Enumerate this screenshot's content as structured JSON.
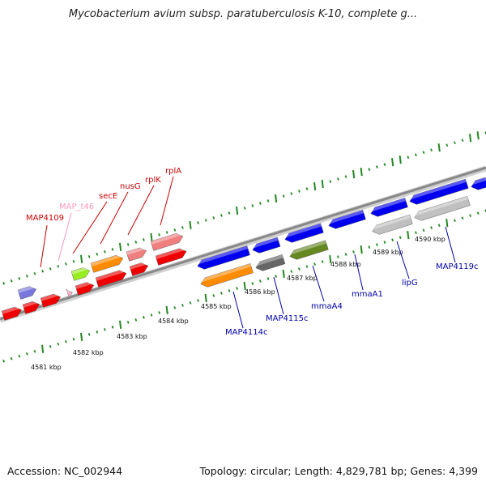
{
  "title": "Mycobacterium avium subsp. paratuberculosis K-10, complete g...",
  "footer": {
    "accession": "Accession: NC_002944",
    "summary": "Topology: circular; Length: 4,829,781 bp; Genes: 4,399"
  },
  "colors": {
    "red": "#ee0000",
    "orange": "#ff8c00",
    "salmon": "#f08080",
    "lime": "#99ee22",
    "pink": "#ffb0c8",
    "purple": "#7777dd",
    "blue": "#0000ee",
    "darkgray": "#666666",
    "olive": "#668822",
    "lightgray": "#c0c0c0",
    "tick": "#228822",
    "backbone": "#888888"
  },
  "kbp_labels": [
    {
      "text": "4581 kbp"
    },
    {
      "text": "4582 kbp"
    },
    {
      "text": "4583 kbp"
    },
    {
      "text": "4584 kbp"
    },
    {
      "text": "4585 kbp"
    },
    {
      "text": "4586 kbp"
    },
    {
      "text": "4587 kbp"
    },
    {
      "text": "4588 kbp"
    },
    {
      "text": "4589 kbp"
    },
    {
      "text": "4590 kbp"
    }
  ],
  "gene_labels": [
    {
      "name": "MAP4109",
      "color": "#cc0000"
    },
    {
      "name": "MAP_t46",
      "color": "#ff99bb"
    },
    {
      "name": "secE",
      "color": "#cc0000"
    },
    {
      "name": "nusG",
      "color": "#cc0000"
    },
    {
      "name": "rplK",
      "color": "#cc0000"
    },
    {
      "name": "rplA",
      "color": "#cc0000"
    },
    {
      "name": "MAP4114c",
      "color": "#0000aa"
    },
    {
      "name": "MAP4115c",
      "color": "#0000aa"
    },
    {
      "name": "mmaA4",
      "color": "#0000aa"
    },
    {
      "name": "mmaA1",
      "color": "#0000aa"
    },
    {
      "name": "lipG",
      "color": "#0000aa"
    },
    {
      "name": "MAP4119c",
      "color": "#0000aa"
    }
  ]
}
